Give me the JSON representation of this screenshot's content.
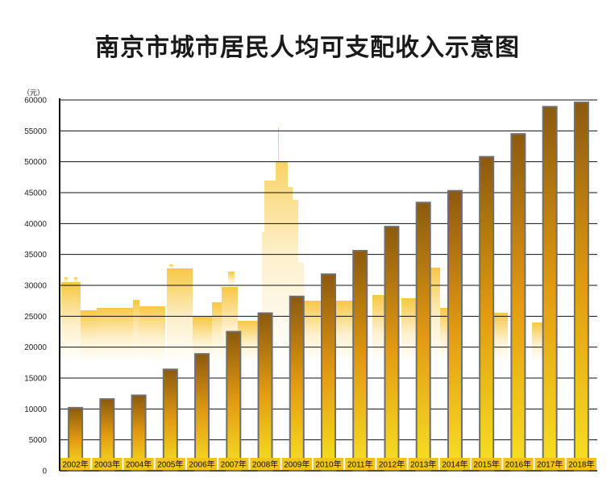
{
  "chart_data": {
    "type": "bar",
    "title": "南京市城市居民人均可支配收入示意图",
    "y_unit": "（元）",
    "categories": [
      "2002年",
      "2003年",
      "2004年",
      "2005年",
      "2006年",
      "2007年",
      "2008年",
      "2009年",
      "2010年",
      "2011年",
      "2012年",
      "2013年",
      "2014年",
      "2015年",
      "2016年",
      "2017年",
      "2018年"
    ],
    "values": [
      10196,
      11602,
      12200,
      16400,
      18900,
      22500,
      25500,
      28200,
      31800,
      35600,
      39500,
      43400,
      45300,
      50800,
      54500,
      58900,
      59600
    ],
    "ylim": [
      0,
      60000
    ],
    "yticks": [
      "0",
      "5000",
      "10000",
      "15000",
      "20000",
      "25000",
      "30000",
      "35000",
      "40000",
      "45000",
      "50000",
      "55000",
      "60000"
    ],
    "grid": true,
    "legend": "none",
    "colors": {
      "bar_top": "#8b5a0e",
      "bar_mid": "#e39a12",
      "bar_bottom": "#f7e223",
      "bar_border": "#6f6f6f",
      "label_bg": "#f2c418",
      "skyline": "#f7c53a"
    }
  }
}
